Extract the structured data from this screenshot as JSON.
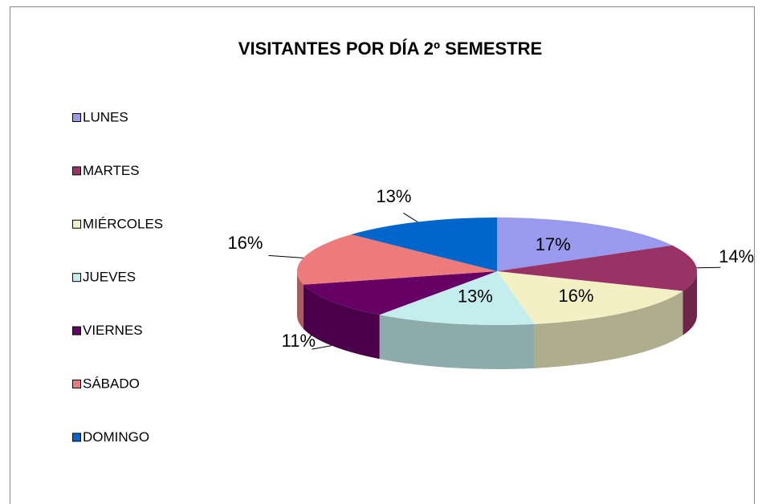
{
  "chart_data": {
    "type": "pie",
    "title": "VISITANTES POR DÍA 2º SEMESTRE",
    "categories": [
      "LUNES",
      "MARTES",
      "MIÉRCOLES",
      "JUEVES",
      "VIERNES",
      "SÁBADO",
      "DOMINGO"
    ],
    "values": [
      17,
      14,
      16,
      13,
      11,
      16,
      13
    ],
    "value_labels": [
      "17%",
      "14%",
      "16%",
      "13%",
      "11%",
      "16%",
      "13%"
    ],
    "colors": [
      "#9999ee",
      "#993366",
      "#f2f0c4",
      "#c4eeee",
      "#660066",
      "#ee7b7b",
      "#0066cc"
    ],
    "legend": "left"
  }
}
